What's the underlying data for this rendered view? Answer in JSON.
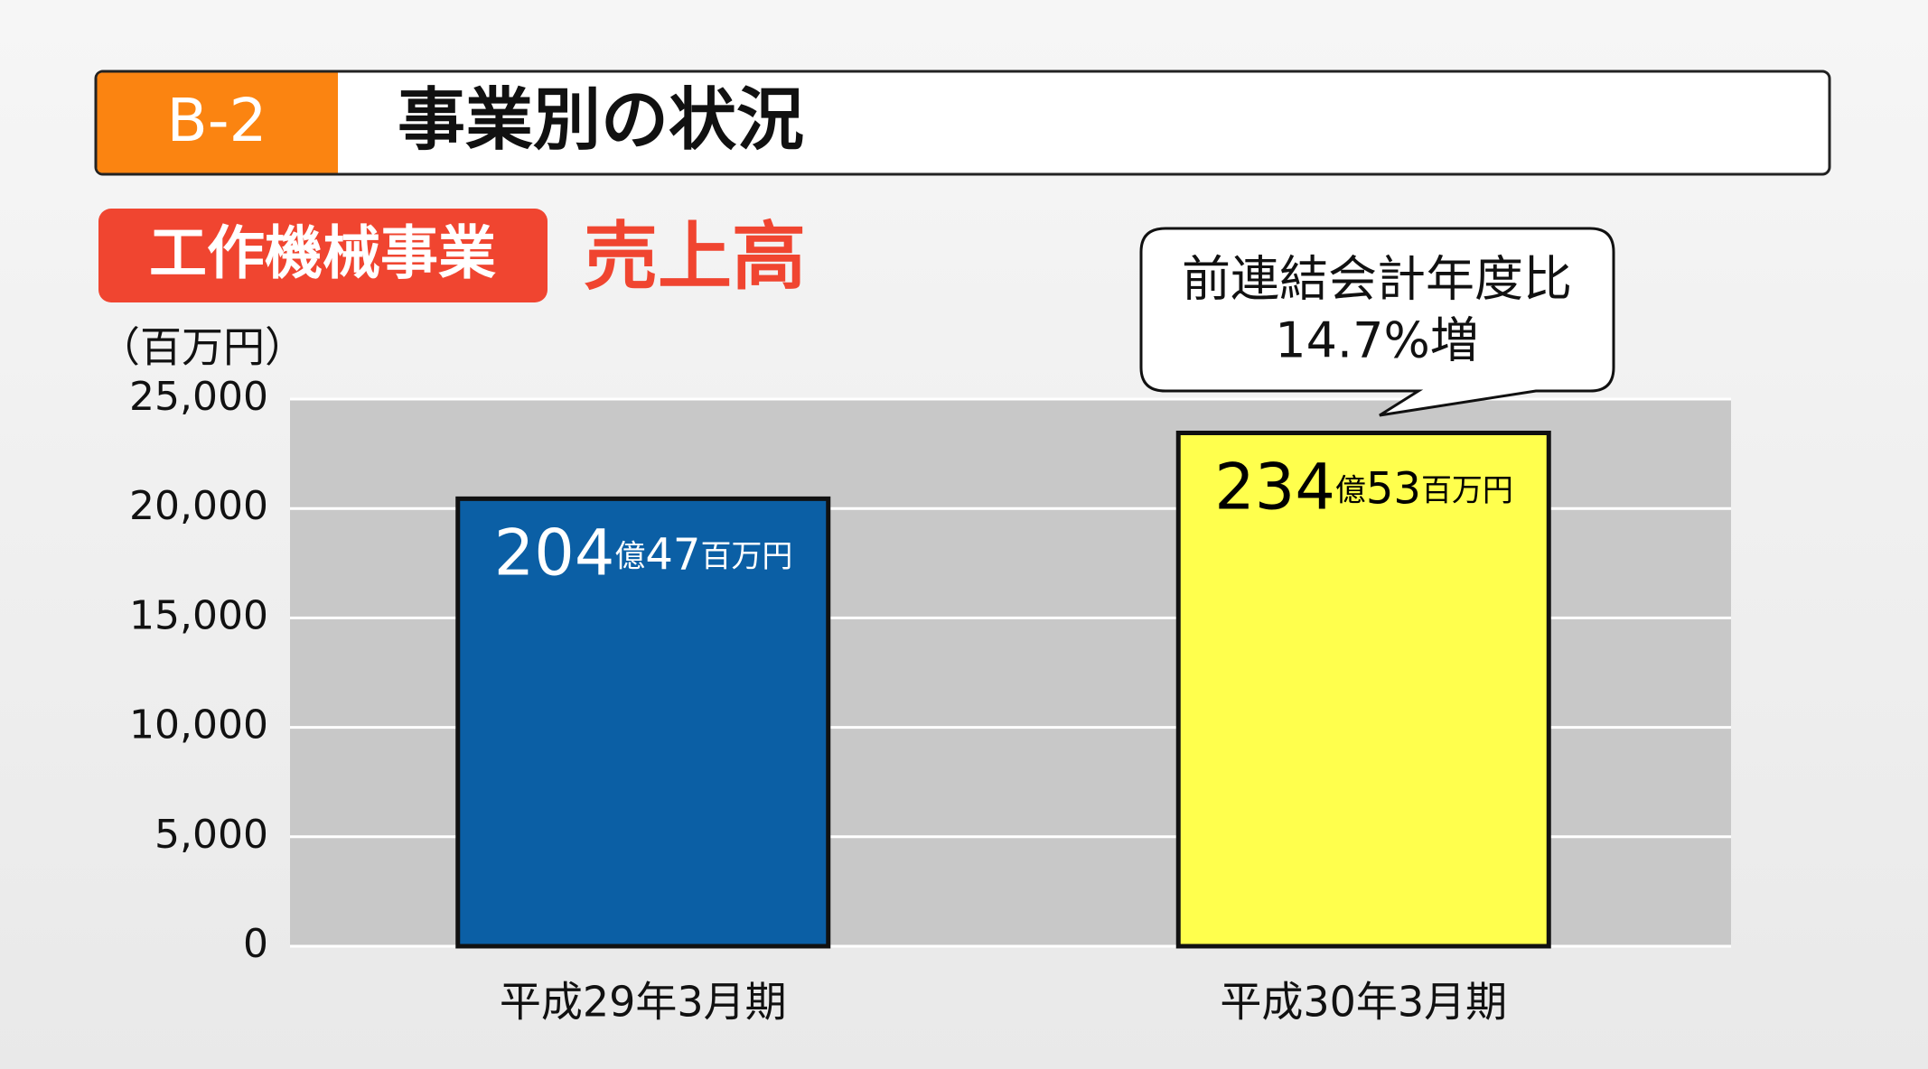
{
  "header": {
    "badge": "B-2",
    "title": "事業別の状況"
  },
  "section": {
    "badge": "工作機械事業",
    "label": "売上高"
  },
  "chart_data": {
    "type": "bar",
    "y_label": "（百万円）",
    "categories": [
      "平成29年3月期",
      "平成30年3月期"
    ],
    "values": [
      20447,
      23453
    ],
    "value_labels": [
      "204億47百万円",
      "234億53百万円"
    ],
    "colors": [
      "#0b5fa5",
      "#ffff4d"
    ],
    "value_label_colors": [
      "#ffffff",
      "#000000"
    ],
    "ylim": [
      0,
      25000
    ],
    "yticks": [
      0,
      {
        "value": 5000,
        "label": "5,000"
      },
      {
        "value": 10000,
        "label": "10,000"
      },
      {
        "value": 15000,
        "label": "15,000"
      },
      {
        "value": 20000,
        "label": "20,000"
      },
      {
        "value": 25000,
        "label": "25,000"
      }
    ],
    "grid": true,
    "annotation": [
      "前連結会計年度比",
      "14.7%増"
    ]
  }
}
